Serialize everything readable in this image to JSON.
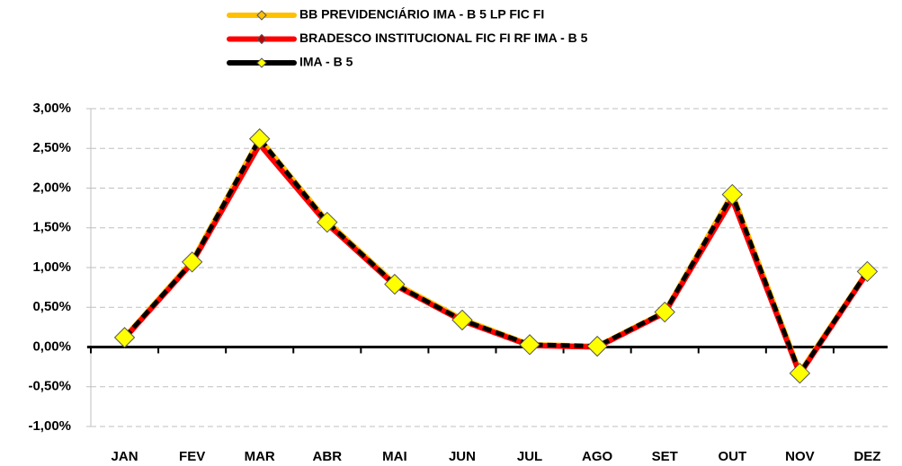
{
  "chart_data": {
    "type": "line",
    "categories": [
      "JAN",
      "FEV",
      "MAR",
      "ABR",
      "MAI",
      "JUN",
      "JUL",
      "AGO",
      "SET",
      "OUT",
      "NOV",
      "DEZ"
    ],
    "series": [
      {
        "name": "BB PREVIDENCIÁRIO IMA - B 5 LP FIC FI",
        "color": "#ffc000",
        "values": [
          0.12,
          1.08,
          2.62,
          1.58,
          0.8,
          0.35,
          0.03,
          0.01,
          0.44,
          1.93,
          -0.32,
          0.95
        ]
      },
      {
        "name": "BRADESCO INSTITUCIONAL FIC FI RF IMA - B 5",
        "color": "#ff0000",
        "values": [
          0.11,
          1.06,
          2.55,
          1.55,
          0.78,
          0.33,
          0.02,
          0.0,
          0.43,
          1.86,
          -0.34,
          0.94
        ]
      },
      {
        "name": "IMA - B 5",
        "color": "#000000",
        "marker_color": "#ffff00",
        "values": [
          0.12,
          1.07,
          2.62,
          1.57,
          0.79,
          0.34,
          0.03,
          0.01,
          0.44,
          1.92,
          -0.33,
          0.95
        ]
      }
    ],
    "ylim": [
      -1,
      3
    ],
    "yticks": [
      {
        "value": -1,
        "label": "-1,00%"
      },
      {
        "value": -0.5,
        "label": "-0,50%"
      },
      {
        "value": 0,
        "label": "0,00%"
      },
      {
        "value": 0.5,
        "label": "0,50%"
      },
      {
        "value": 1,
        "label": "1,00%"
      },
      {
        "value": 1.5,
        "label": "1,50%"
      },
      {
        "value": 2,
        "label": "2,00%"
      },
      {
        "value": 2.5,
        "label": "2,50%"
      },
      {
        "value": 3,
        "label": "3,00%"
      }
    ],
    "grid": true,
    "legend": "top"
  }
}
